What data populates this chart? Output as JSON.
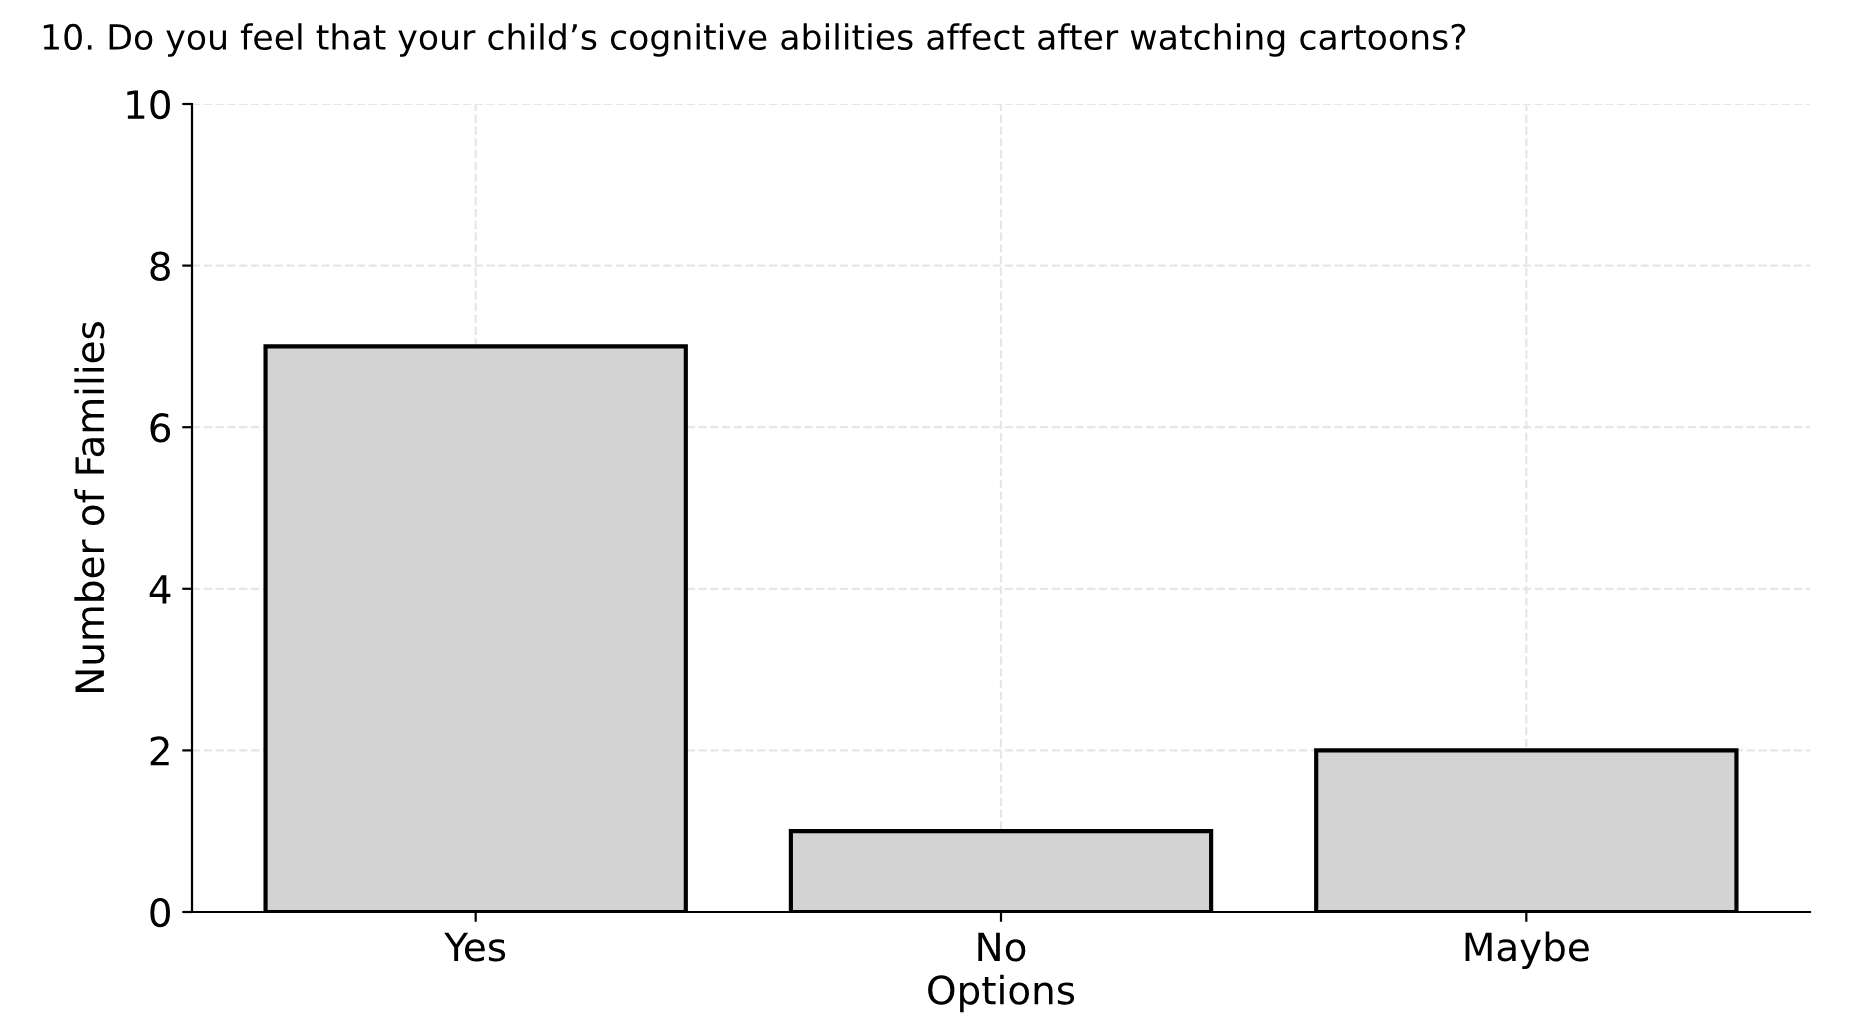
{
  "chart_data": {
    "type": "bar",
    "title": "10. Do you feel that your child’s cognitive abilities affect after watching cartoons?",
    "xlabel": "Options",
    "ylabel": "Number of Families",
    "categories": [
      "Yes",
      "No",
      "Maybe"
    ],
    "values": [
      7,
      1,
      2
    ],
    "color": "#d3d3d3",
    "ylim": [
      0,
      10
    ],
    "yticks": [
      0,
      2,
      4,
      6,
      8,
      10
    ],
    "grid": true
  }
}
